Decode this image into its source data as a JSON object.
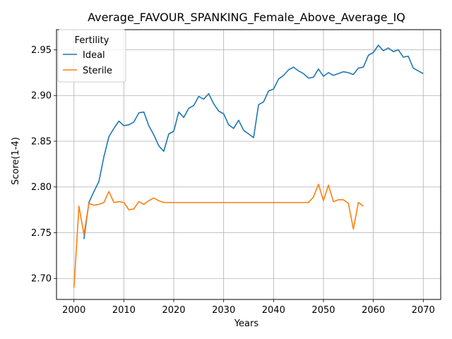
{
  "chart_data": {
    "type": "line",
    "title": "Average_FAVOUR_SPANKING_Female_Above_Average_IQ",
    "xlabel": "Years",
    "ylabel": "Score(1-4)",
    "xlim": [
      1996.5,
      2073.5
    ],
    "ylim": [
      2.677,
      2.972
    ],
    "xticks": [
      2000,
      2010,
      2020,
      2030,
      2040,
      2050,
      2060,
      2070
    ],
    "yticks": [
      2.7,
      2.75,
      2.8,
      2.85,
      2.9,
      2.95
    ],
    "ytick_labels": [
      "2.70",
      "2.75",
      "2.80",
      "2.85",
      "2.90",
      "2.95"
    ],
    "grid": true,
    "legend": {
      "title": "Fertility",
      "position": "upper-left"
    },
    "series": [
      {
        "name": "Ideal",
        "color": "#1f77b4",
        "x": [
          2002,
          2003,
          2004,
          2005,
          2006,
          2007,
          2008,
          2009,
          2010,
          2011,
          2012,
          2013,
          2014,
          2015,
          2016,
          2017,
          2018,
          2019,
          2020,
          2021,
          2022,
          2023,
          2024,
          2025,
          2026,
          2027,
          2028,
          2029,
          2030,
          2031,
          2032,
          2033,
          2034,
          2035,
          2036,
          2037,
          2038,
          2039,
          2040,
          2041,
          2042,
          2043,
          2044,
          2045,
          2046,
          2047,
          2048,
          2049,
          2050,
          2051,
          2052,
          2053,
          2054,
          2055,
          2056,
          2057,
          2058,
          2059,
          2060,
          2061,
          2062,
          2063,
          2064,
          2065,
          2066,
          2067,
          2068,
          2069,
          2070
        ],
        "y": [
          2.743,
          2.783,
          2.795,
          2.806,
          2.833,
          2.855,
          2.864,
          2.872,
          2.867,
          2.868,
          2.871,
          2.881,
          2.882,
          2.867,
          2.857,
          2.845,
          2.839,
          2.858,
          2.861,
          2.882,
          2.876,
          2.886,
          2.889,
          2.899,
          2.896,
          2.902,
          2.891,
          2.883,
          2.88,
          2.868,
          2.864,
          2.873,
          2.862,
          2.858,
          2.854,
          2.89,
          2.893,
          2.905,
          2.907,
          2.918,
          2.922,
          2.928,
          2.931,
          2.927,
          2.924,
          2.919,
          2.92,
          2.929,
          2.921,
          2.925,
          2.922,
          2.924,
          2.926,
          2.925,
          2.923,
          2.93,
          2.931,
          2.944,
          2.947,
          2.955,
          2.949,
          2.952,
          2.948,
          2.95,
          2.942,
          2.943,
          2.93,
          2.927,
          2.924
        ]
      },
      {
        "name": "Sterile",
        "color": "#ff7f0e",
        "x": [
          2000,
          2001,
          2002,
          2003,
          2004,
          2005,
          2006,
          2007,
          2008,
          2009,
          2010,
          2011,
          2012,
          2013,
          2014,
          2015,
          2016,
          2017,
          2018,
          2019,
          2020,
          2021,
          2022,
          2023,
          2024,
          2025,
          2026,
          2027,
          2028,
          2029,
          2030,
          2031,
          2032,
          2033,
          2034,
          2035,
          2036,
          2037,
          2038,
          2039,
          2040,
          2041,
          2042,
          2043,
          2044,
          2045,
          2046,
          2047,
          2048,
          2049,
          2050,
          2051,
          2052,
          2053,
          2054,
          2055,
          2056,
          2057,
          2058
        ],
        "y": [
          2.69,
          2.779,
          2.748,
          2.782,
          2.78,
          2.781,
          2.783,
          2.795,
          2.783,
          2.784,
          2.783,
          2.775,
          2.776,
          2.784,
          2.781,
          2.785,
          2.788,
          2.785,
          2.783,
          2.783,
          2.783,
          2.783,
          2.783,
          2.783,
          2.783,
          2.783,
          2.783,
          2.783,
          2.783,
          2.783,
          2.783,
          2.783,
          2.783,
          2.783,
          2.783,
          2.783,
          2.783,
          2.783,
          2.783,
          2.783,
          2.783,
          2.783,
          2.783,
          2.783,
          2.783,
          2.783,
          2.783,
          2.783,
          2.789,
          2.803,
          2.785,
          2.802,
          2.784,
          2.786,
          2.786,
          2.782,
          2.754,
          2.783,
          2.779
        ]
      }
    ]
  }
}
